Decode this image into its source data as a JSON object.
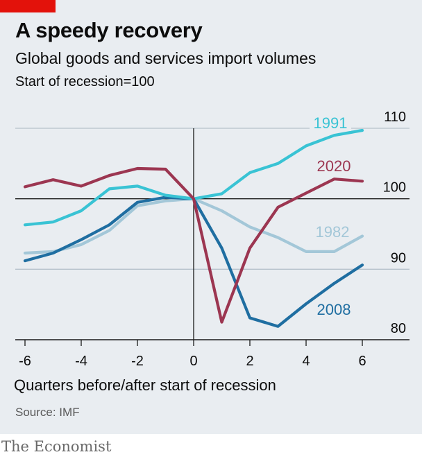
{
  "header": {
    "title": "A speedy recovery",
    "subtitle": "Global goods and services import volumes",
    "index_note": "Start of recession=100"
  },
  "footer": {
    "source": "Source: IMF",
    "brand": "The Economist"
  },
  "colors": {
    "brand_red": "#e3120b",
    "background": "#e9edf1",
    "grid": "#b6c1cb"
  },
  "chart_data": {
    "type": "line",
    "xlabel": "Quarters before/after start of recession",
    "ylabel": "",
    "x": [
      -6,
      -5,
      -4,
      -3,
      -2,
      -1,
      0,
      1,
      2,
      3,
      4,
      5,
      6
    ],
    "xticks": [
      -6,
      -4,
      -2,
      0,
      2,
      4,
      6
    ],
    "yticks": [
      80,
      90,
      100,
      110
    ],
    "xlim": [
      -6,
      6
    ],
    "ylim": [
      80,
      110
    ],
    "grid": true,
    "legend": "direct labels",
    "series": [
      {
        "name": "1982",
        "color": "#a3c7d8",
        "values": [
          92.3,
          92.5,
          93.5,
          95.5,
          99,
          99.7,
          100,
          98.3,
          96,
          94.5,
          92.5,
          92.5,
          94.7
        ]
      },
      {
        "name": "2008",
        "color": "#1f6ea1",
        "values": [
          91.2,
          92.3,
          94.2,
          96.3,
          99.5,
          100.2,
          100,
          93,
          83.1,
          81.9,
          85.1,
          88,
          90.6
        ]
      },
      {
        "name": "1991",
        "color": "#39c3d4",
        "values": [
          96.3,
          96.7,
          98.3,
          101.4,
          101.8,
          100.5,
          100,
          100.7,
          103.7,
          105,
          107.5,
          109,
          109.7
        ]
      },
      {
        "name": "2020",
        "color": "#9c3651",
        "values": [
          101.7,
          102.7,
          101.8,
          103.3,
          104.3,
          104.2,
          100,
          82.5,
          93,
          98.8,
          100.8,
          102.8,
          102.5
        ]
      }
    ]
  }
}
